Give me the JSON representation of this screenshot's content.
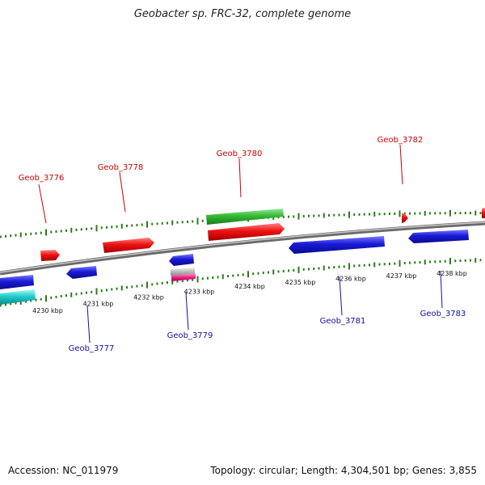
{
  "title": "Geobacter sp. FRC-32, complete genome",
  "footer": {
    "accession": "Accession: NC_011979",
    "summary": "Topology: circular; Length: 4,304,501 bp; Genes: 3,855"
  },
  "colors": {
    "strand_plus": "#ee1111",
    "strand_minus": "#1a1ad8",
    "label_plus": "#cc0000",
    "label_minus": "#1111aa",
    "ticks": "#2a7a1a",
    "backbone": "#888888"
  },
  "scale": {
    "ticks": [
      {
        "kbp": 4230,
        "label": "4230 kbp"
      },
      {
        "kbp": 4231,
        "label": "4231 kbp"
      },
      {
        "kbp": 4232,
        "label": "4232 kbp"
      },
      {
        "kbp": 4233,
        "label": "4233 kbp"
      },
      {
        "kbp": 4234,
        "label": "4234 kbp"
      },
      {
        "kbp": 4235,
        "label": "4235 kbp"
      },
      {
        "kbp": 4236,
        "label": "4236 kbp"
      },
      {
        "kbp": 4237,
        "label": "4237 kbp"
      },
      {
        "kbp": 4238,
        "label": "4238 kbp"
      }
    ]
  },
  "gene_labels_plus": [
    "Geob_3776",
    "Geob_3778",
    "Geob_3780",
    "Geob_3782"
  ],
  "gene_labels_minus": [
    "Geob_3777",
    "Geob_3779",
    "Geob_3781",
    "Geob_3783"
  ]
}
